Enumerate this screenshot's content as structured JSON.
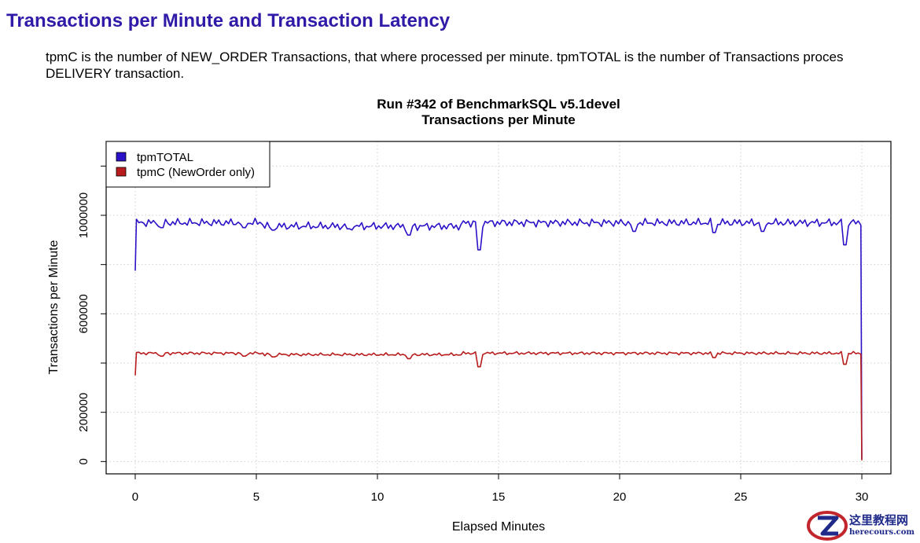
{
  "page": {
    "heading": "Transactions per Minute and Transaction Latency",
    "intro_line1": "tpmC is the number of NEW_ORDER Transactions, that where processed per minute. tpmTOTAL is the number of Transactions proces",
    "intro_line2": "DELIVERY transaction."
  },
  "chart_data": {
    "type": "line",
    "title": "Run #342 of BenchmarkSQL v5.1devel",
    "subtitle": "Transactions per Minute",
    "xlabel": "Elapsed Minutes",
    "ylabel": "Transactions per Minute",
    "xlim": [
      -1.2,
      31.2
    ],
    "ylim": [
      -50000,
      1300000
    ],
    "x_ticks": [
      0,
      5,
      10,
      15,
      20,
      25,
      30
    ],
    "y_ticks": [
      0,
      200000,
      600000,
      1000000
    ],
    "grid": true,
    "legend_position": "top-left",
    "series": [
      {
        "name": "tpmTOTAL",
        "color": "#2b12c8",
        "base": 970000,
        "start_value": 775000,
        "sample_step_minutes": 0.1,
        "dips": [
          [
            1.1,
            950000
          ],
          [
            4.5,
            950000
          ],
          [
            5.7,
            940000
          ],
          [
            8.8,
            945000
          ],
          [
            11.3,
            920000
          ],
          [
            14.2,
            860000
          ],
          [
            20.6,
            935000
          ],
          [
            23.9,
            930000
          ],
          [
            25.9,
            935000
          ],
          [
            29.3,
            880000
          ]
        ],
        "end_values": [
          [
            29.96,
            960000
          ],
          [
            30.0,
            10000
          ]
        ]
      },
      {
        "name": "tpmC (NewOrder only)",
        "color": "#b81c1c",
        "base": 440000,
        "start_value": 350000,
        "sample_step_minutes": 0.1,
        "dips": [
          [
            1.1,
            428000
          ],
          [
            4.5,
            428000
          ],
          [
            5.7,
            425000
          ],
          [
            11.3,
            418000
          ],
          [
            14.2,
            385000
          ],
          [
            23.9,
            422000
          ],
          [
            29.3,
            395000
          ]
        ],
        "end_values": [
          [
            29.96,
            436000
          ],
          [
            30.0,
            5000
          ]
        ]
      }
    ]
  },
  "watermark": {
    "name": "这里教程网",
    "url": "herecours.com"
  }
}
